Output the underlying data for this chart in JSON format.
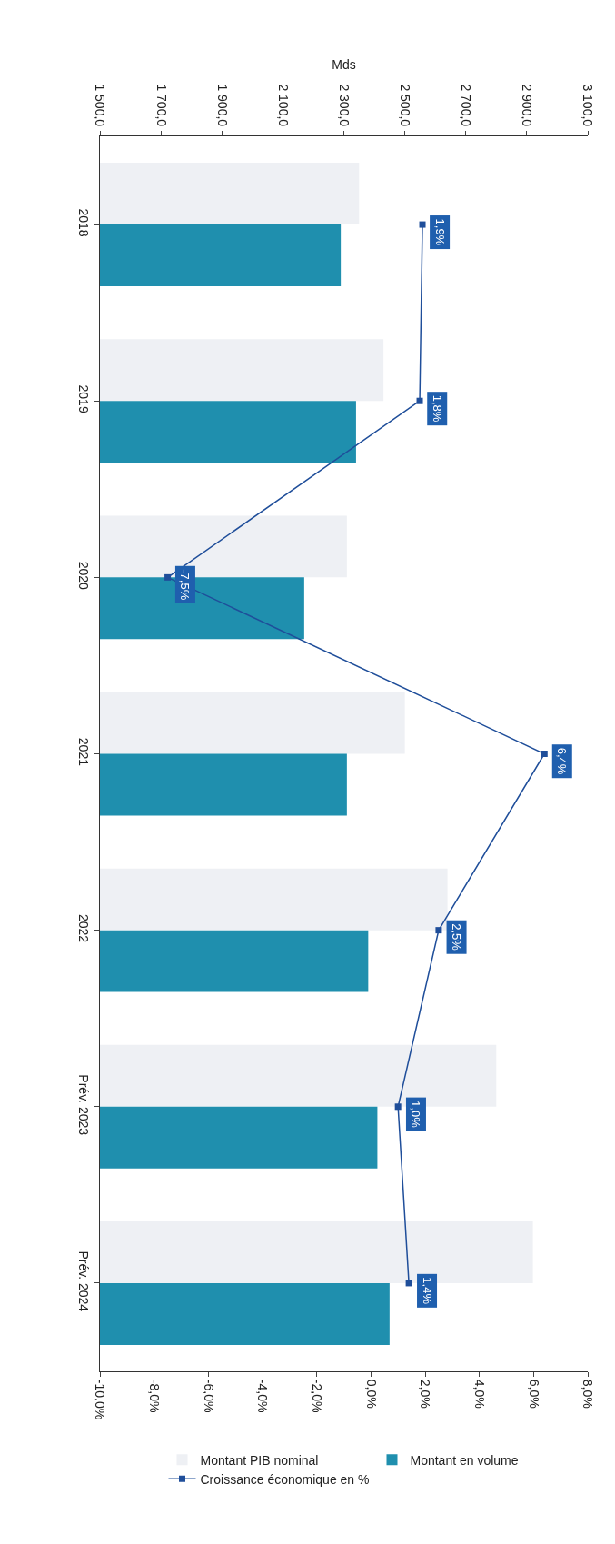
{
  "chart_data": {
    "type": "bar",
    "orientation": "horizontal",
    "categories": [
      "2018",
      "2019",
      "2020",
      "2021",
      "2022",
      "Prév. 2023",
      "Prév. 2024"
    ],
    "series": [
      {
        "name": "Montant PIB nominal",
        "axis": "x2",
        "color": "#eef0f4",
        "values": [
          2350,
          2430,
          2310,
          2500,
          2640,
          2800,
          2920
        ]
      },
      {
        "name": "Montant en volume",
        "axis": "x2",
        "color": "#1f8fae",
        "values": [
          2290,
          2340,
          2170,
          2310,
          2380,
          2410,
          2450
        ]
      },
      {
        "name": "Croissance économique en %",
        "type": "line",
        "color": "#1f4e9a",
        "marker": "square",
        "values": [
          1.9,
          1.8,
          -7.5,
          6.4,
          2.5,
          1.0,
          1.4
        ],
        "value_labels": [
          "1,9%",
          "1,8%",
          "-7,5%",
          "6,4%",
          "2,5%",
          "1,0%",
          "1,4%"
        ]
      }
    ],
    "x2label": "Mds",
    "x2lim": [
      1500,
      3100
    ],
    "x2ticks": [
      {
        "value": 1500,
        "label": "1 500,0"
      },
      {
        "value": 1700,
        "label": "1 700,0"
      },
      {
        "value": 1900,
        "label": "1 900,0"
      },
      {
        "value": 2100,
        "label": "2 100,0"
      },
      {
        "value": 2300,
        "label": "2 300,0"
      },
      {
        "value": 2500,
        "label": "2 500,0"
      },
      {
        "value": 2700,
        "label": "2 700,0"
      },
      {
        "value": 2900,
        "label": "2 900,0"
      },
      {
        "value": 3100,
        "label": "3 100,0"
      }
    ],
    "xlim": [
      -10,
      8
    ],
    "xticks": [
      {
        "value": -10,
        "label": "-10,0%"
      },
      {
        "value": -8,
        "label": "-8,0%"
      },
      {
        "value": -6,
        "label": "-6,0%"
      },
      {
        "value": -4,
        "label": "-4,0%"
      },
      {
        "value": -2,
        "label": "-2,0%"
      },
      {
        "value": 0,
        "label": "0,0%"
      },
      {
        "value": 2,
        "label": "2,0%"
      },
      {
        "value": 4,
        "label": "4,0%"
      },
      {
        "value": 6,
        "label": "6,0%"
      },
      {
        "value": 8,
        "label": "8,0%"
      }
    ],
    "grid": false,
    "legend": "bottom"
  }
}
